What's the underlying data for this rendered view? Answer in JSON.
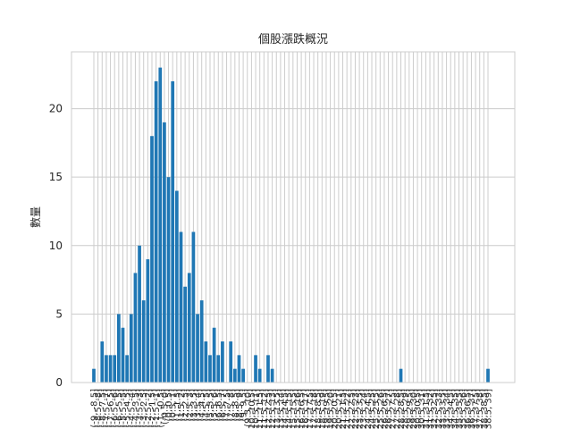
{
  "chart_data": {
    "type": "bar",
    "title": "個股漲跌概況",
    "xlabel": "",
    "ylabel": "數量",
    "ylim": [
      0,
      24.15
    ],
    "yticks": [
      0,
      5,
      10,
      15,
      20
    ],
    "grid": true,
    "bar_color": "#1f77b4",
    "categories": [
      "(-9, -8.5]",
      "(-8.5, -8]",
      "(-8, -7.5]",
      "(-7.5, -7]",
      "(-7, -6.5]",
      "(-6.5, -6]",
      "(-6, -5.5]",
      "(-5.5, -5]",
      "(-5, -4.5]",
      "(-4.5, -4]",
      "(-4, -3.5]",
      "(-3.5, -3]",
      "(-3, -2.5]",
      "(-2.5, -2]",
      "(-2, -1.5]",
      "(-1.5, -1]",
      "(-1, -0.5]",
      "(-0.5, 0]",
      "(0, 0.5]",
      "(0.5, 1]",
      "(1, 1.5]",
      "(1.5, 2]",
      "(2, 2.5]",
      "(2.5, 3]",
      "(3, 3.5]",
      "(3.5, 4]",
      "(4, 4.5]",
      "(4.5, 5]",
      "(5, 5.5]",
      "(5.5, 6]",
      "(6, 6.5]",
      "(6.5, 7]",
      "(7, 7.5]",
      "(7.5, 8]",
      "(8, 8.5]",
      "(8.5, 9]",
      "(9, 9.5]",
      "(9.5, 10]",
      "(10, 10.5]",
      "(10.5, 11]",
      "(11, 11.5]",
      "(11.5, 12]",
      "(12, 12.5]",
      "(12.5, 13]",
      "(13, 13.5]",
      "(13.5, 14]",
      "(14, 14.5]",
      "(14.5, 15]",
      "(15, 15.5]",
      "(15.5, 16]",
      "(16, 16.5]",
      "(16.5, 17]",
      "(17, 17.5]",
      "(17.5, 18]",
      "(18, 18.5]",
      "(18.5, 19]",
      "(19, 19.5]",
      "(19.5, 20]",
      "(20, 20.5]",
      "(20.5, 21]",
      "(21, 21.5]",
      "(21.5, 22]",
      "(22, 22.5]",
      "(22.5, 23]",
      "(23, 23.5]",
      "(23.5, 24]",
      "(24, 24.5]",
      "(24.5, 25]",
      "(25, 25.5]",
      "(25.5, 26]",
      "(26, 26.5]",
      "(26.5, 27]",
      "(27, 27.5]",
      "(27.5, 28]",
      "(28, 28.5]",
      "(28.5, 29]",
      "(29, 29.5]",
      "(29.5, 30]",
      "(30, 30.5]",
      "(30.5, 31]",
      "(31, 31.5]",
      "(31.5, 32]",
      "(32, 32.5]",
      "(32.5, 33]",
      "(33, 33.5]",
      "(33.5, 34]",
      "(34, 34.5]",
      "(34.5, 35]",
      "(35, 35.5]",
      "(35.5, 36]",
      "(36, 36.5]",
      "(36.5, 37]",
      "(37, 37.5]",
      "(37.5, 38]",
      "(38, 38.5]",
      "(38.5, 39]"
    ],
    "values": [
      1,
      0,
      3,
      2,
      2,
      2,
      5,
      4,
      2,
      5,
      8,
      10,
      6,
      9,
      18,
      22,
      23,
      19,
      15,
      22,
      14,
      11,
      7,
      8,
      11,
      5,
      6,
      3,
      2,
      4,
      2,
      3,
      0,
      3,
      1,
      2,
      1,
      0,
      0,
      2,
      1,
      0,
      2,
      1,
      0,
      0,
      0,
      0,
      0,
      0,
      0,
      0,
      0,
      0,
      0,
      0,
      0,
      0,
      0,
      0,
      0,
      0,
      0,
      0,
      0,
      0,
      0,
      0,
      0,
      0,
      0,
      0,
      0,
      0,
      1,
      0,
      0,
      0,
      0,
      0,
      0,
      0,
      0,
      0,
      0,
      0,
      0,
      0,
      0,
      0,
      0,
      0,
      0,
      0,
      0,
      1
    ]
  }
}
